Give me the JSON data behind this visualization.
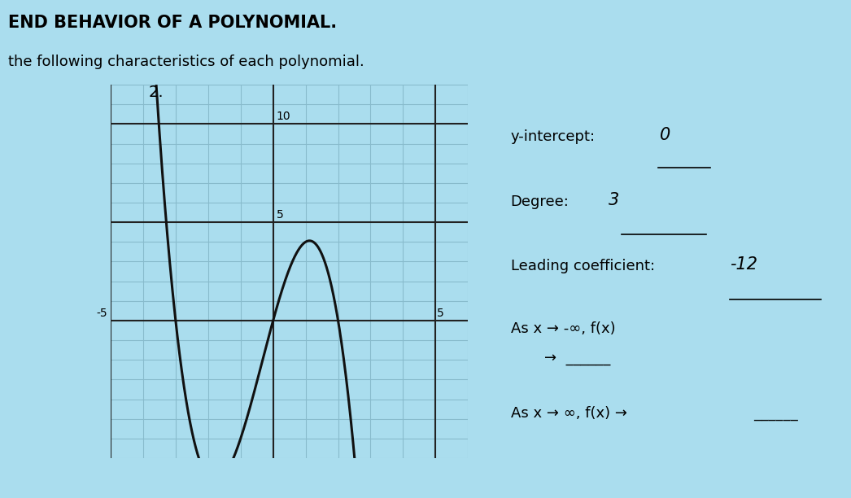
{
  "background_color": "#aaddee",
  "title_text": "END BEHAVIOR OF A POLYNOMIAL.",
  "subtitle_text": "the following characteristics of each polynomial.",
  "problem_number": "2.",
  "graph": {
    "xlim": [
      -5,
      6
    ],
    "ylim": [
      -7,
      12
    ],
    "grid_color": "#88bbcc",
    "axis_color": "#222222",
    "curve_color": "#111111",
    "curve_linewidth": 2.2
  },
  "annotations": {
    "y_intercept_label": "y-intercept:",
    "y_intercept_value": "0",
    "degree_label": "Degree:",
    "degree_value": "3",
    "leading_coeff_label": "Leading coefficient:",
    "leading_coeff_value": "-12",
    "end_behavior_neg": "As x → -∞, f(x)",
    "end_behavior_pos": "As x → ∞, f(x) →",
    "arrow_right": "→",
    "blank_line": "______"
  },
  "font_sizes": {
    "title": 15,
    "subtitle": 13,
    "problem_number": 14,
    "annotation": 13,
    "axis_tick": 10,
    "handwritten": 15
  }
}
